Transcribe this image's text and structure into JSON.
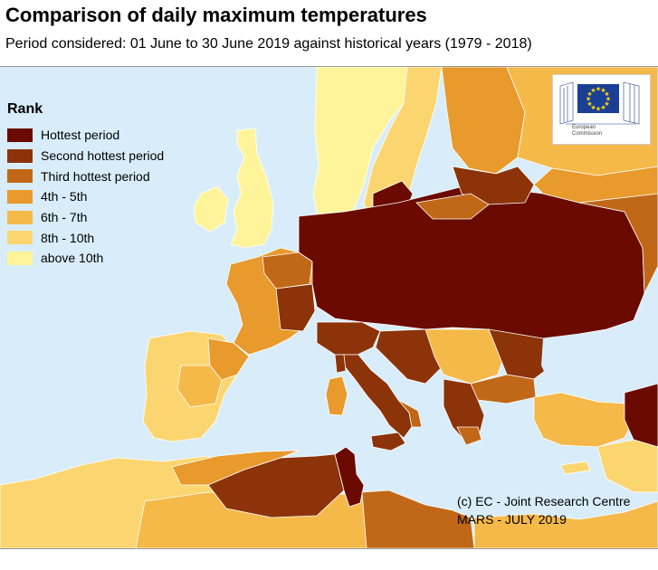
{
  "title": "Comparison of daily maximum temperatures",
  "subtitle": "Period considered: 01 June to 30 June 2019 against historical years (1979 - 2018)",
  "legend": {
    "title": "Rank",
    "items": [
      {
        "label": "Hottest period",
        "color": "#6b0a00"
      },
      {
        "label": "Second hottest period",
        "color": "#8c330a"
      },
      {
        "label": "Third hottest period",
        "color": "#c06817"
      },
      {
        "label": "4th - 5th",
        "color": "#e89a2c"
      },
      {
        "label": "6th - 7th",
        "color": "#f5b94a"
      },
      {
        "label": "8th - 10th",
        "color": "#fbd670"
      },
      {
        "label": "above 10th",
        "color": "#fff49a"
      }
    ]
  },
  "logo": {
    "line1": "European",
    "line2": "Commission"
  },
  "credit": {
    "line1": "(c) EC - Joint Research Centre",
    "line2": "MARS - JULY 2019"
  },
  "colors": {
    "sea": "#d8edf9",
    "land_outside": "#d9d9d9",
    "border": "#ffffff",
    "eu_blue": "#1a3f95",
    "eu_star": "#ffdd00"
  }
}
